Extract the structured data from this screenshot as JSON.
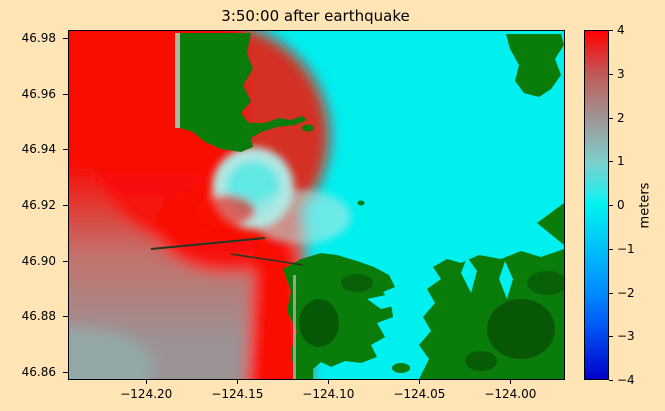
{
  "chart_data": {
    "type": "heatmap",
    "title": "3:50:00 after earthquake",
    "xlabel": "",
    "ylabel": "",
    "grid": false,
    "xlim": [
      -124.243,
      -123.97
    ],
    "ylim": [
      46.857,
      46.983
    ],
    "xticks": {
      "values": [
        -124.2,
        -124.15,
        -124.1,
        -124.05,
        -124.0
      ],
      "labels": [
        "−124.20",
        "−124.15",
        "−124.10",
        "−124.05",
        "−124.00"
      ]
    },
    "yticks": {
      "values": [
        46.98,
        46.96,
        46.94,
        46.92,
        46.9,
        46.88,
        46.86
      ],
      "labels": [
        "46.98",
        "46.96",
        "46.94",
        "46.92",
        "46.90",
        "46.88",
        "46.86"
      ]
    },
    "colorbar": {
      "label": "meters",
      "min": -4,
      "max": 4,
      "position": "right",
      "ticks": {
        "values": [
          4,
          3,
          2,
          1,
          0,
          -1,
          -2,
          -3,
          -4
        ],
        "labels": [
          "4",
          "3",
          "2",
          "1",
          "0",
          "−1",
          "−2",
          "−3",
          "−4"
        ]
      },
      "colormap_stops": [
        {
          "value": 4,
          "color": "#ff0000"
        },
        {
          "value": 3,
          "color": "#c05a58"
        },
        {
          "value": 2,
          "color": "#a09595"
        },
        {
          "value": 1,
          "color": "#7ecfcc"
        },
        {
          "value": 0.3,
          "color": "#30e8e8"
        },
        {
          "value": 0,
          "color": "#00f2f2"
        },
        {
          "value": -1,
          "color": "#00c0f8"
        },
        {
          "value": -2,
          "color": "#008cff"
        },
        {
          "value": -3,
          "color": "#0048f0"
        },
        {
          "value": -4,
          "color": "#0000c8"
        }
      ]
    },
    "sampled_values": [
      {
        "region": "offshore ocean north-west",
        "lon": -124.22,
        "lat": 46.96,
        "value_m": 4
      },
      {
        "region": "offshore ocean south-west",
        "lon": -124.23,
        "lat": 46.87,
        "value_m": 2
      },
      {
        "region": "harbor entrance wave jet",
        "lon": -124.14,
        "lat": 46.92,
        "value_m": 4
      },
      {
        "region": "coastal strip south of entrance",
        "lon": -124.13,
        "lat": 46.88,
        "value_m": 4
      },
      {
        "region": "circular basin inside entrance",
        "lon": -124.14,
        "lat": 46.93,
        "value_m": 0.5
      },
      {
        "region": "inner harbor bay (east)",
        "lon": -124.03,
        "lat": 46.93,
        "value_m": 0
      },
      {
        "region": "land areas (green)",
        "lon": -124.16,
        "lat": 46.97,
        "value_m": "land"
      }
    ]
  },
  "colors": {
    "figure_bg": "#ffe4b5",
    "frame": "#000000",
    "text": "#000000",
    "water_cyan": "#00efef",
    "water_cyan_light": "#62e8e4",
    "water_pale": "#b2e6e2",
    "water_red": "#f90d06",
    "water_rose": "#c4706a",
    "water_gray": "#9b9294",
    "water_corner": "#8cbcb8",
    "land_green": "#0a7c0a",
    "land_dark": "#064e06",
    "sand": "#b3b3a0",
    "jetty": "#223822"
  }
}
